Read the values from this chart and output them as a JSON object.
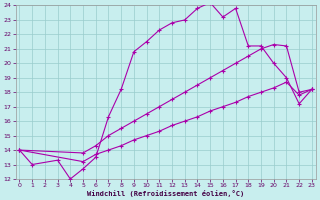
{
  "xlabel": "Windchill (Refroidissement éolien,°C)",
  "bg_color": "#c8eeee",
  "grid_color": "#99cccc",
  "line_color": "#aa00aa",
  "xlim": [
    0,
    23
  ],
  "ylim": [
    12,
    24
  ],
  "xticks": [
    0,
    1,
    2,
    3,
    4,
    5,
    6,
    7,
    8,
    9,
    10,
    11,
    12,
    13,
    14,
    15,
    16,
    17,
    18,
    19,
    20,
    21,
    22,
    23
  ],
  "yticks": [
    12,
    13,
    14,
    15,
    16,
    17,
    18,
    19,
    20,
    21,
    22,
    23,
    24
  ],
  "curve1_x": [
    0,
    1,
    3,
    4,
    5,
    6,
    7,
    8,
    9,
    10,
    11,
    12,
    13,
    14,
    15,
    16,
    17,
    18,
    19,
    20,
    21,
    22,
    23
  ],
  "curve1_y": [
    14.0,
    13.0,
    13.3,
    12.0,
    12.7,
    13.5,
    16.3,
    18.2,
    20.8,
    21.5,
    22.3,
    22.8,
    23.0,
    23.8,
    24.2,
    23.2,
    23.8,
    21.2,
    21.2,
    20.0,
    19.0,
    17.2,
    18.2
  ],
  "curve2_x": [
    0,
    5,
    6,
    7,
    8,
    9,
    10,
    11,
    12,
    13,
    14,
    15,
    16,
    17,
    18,
    19,
    20,
    21,
    22,
    23
  ],
  "curve2_y": [
    14.0,
    13.8,
    14.3,
    15.0,
    15.5,
    16.0,
    16.5,
    17.0,
    17.5,
    18.0,
    18.5,
    19.0,
    19.5,
    20.0,
    20.5,
    21.0,
    21.3,
    21.2,
    18.0,
    18.2
  ],
  "curve3_x": [
    0,
    5,
    6,
    7,
    8,
    9,
    10,
    11,
    12,
    13,
    14,
    15,
    16,
    17,
    18,
    19,
    20,
    21,
    22,
    23
  ],
  "curve3_y": [
    14.0,
    13.2,
    13.7,
    14.0,
    14.3,
    14.7,
    15.0,
    15.3,
    15.7,
    16.0,
    16.3,
    16.7,
    17.0,
    17.3,
    17.7,
    18.0,
    18.3,
    18.7,
    17.8,
    18.2
  ]
}
